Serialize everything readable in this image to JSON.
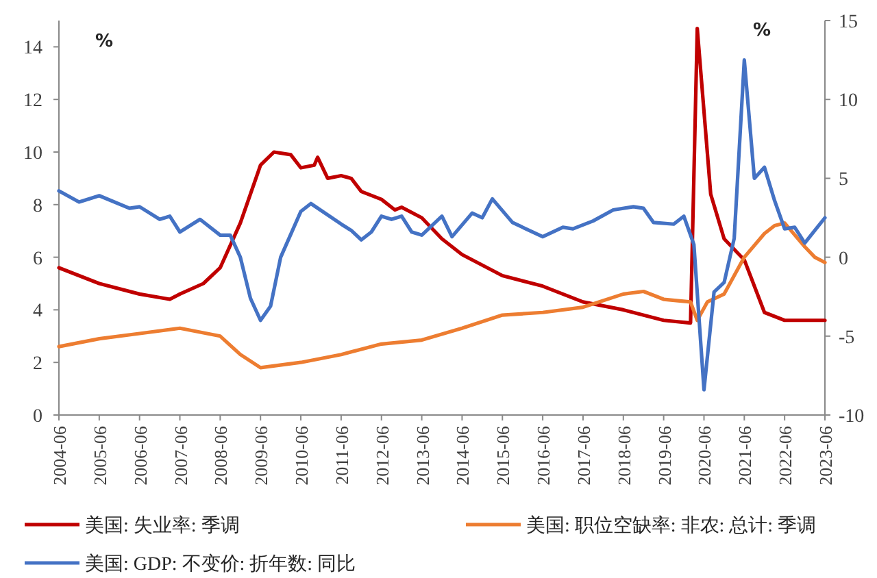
{
  "chart_data": {
    "type": "line",
    "xlim": [
      "2004-06",
      "2023-06"
    ],
    "xticks": [
      "2004-06",
      "2005-06",
      "2006-06",
      "2007-06",
      "2008-06",
      "2009-06",
      "2010-06",
      "2011-06",
      "2012-06",
      "2013-06",
      "2014-06",
      "2015-06",
      "2016-06",
      "2017-06",
      "2018-06",
      "2019-06",
      "2020-06",
      "2021-06",
      "2022-06",
      "2023-06"
    ],
    "ylim": [
      0,
      15
    ],
    "yticks": [
      0,
      2,
      4,
      6,
      8,
      10,
      12,
      14
    ],
    "y2lim": [
      -10,
      15
    ],
    "y2ticks": [
      -10,
      -5,
      0,
      5,
      10,
      15
    ],
    "annotations": [
      "%",
      "%"
    ],
    "legend": "bottom",
    "grid": false,
    "marker": "none",
    "line_style": "solid",
    "series": [
      {
        "name": "美国: 失业率: 季调",
        "color": "#c00000",
        "x": [
          "2004-06",
          "2005-06",
          "2006-06",
          "2007-03",
          "2007-06",
          "2008-01",
          "2008-06",
          "2008-12",
          "2009-06",
          "2009-10",
          "2010-03",
          "2010-06",
          "2010-10",
          "2010-11",
          "2011-02",
          "2011-06",
          "2011-09",
          "2011-12",
          "2012-06",
          "2012-10",
          "2012-12",
          "2013-06",
          "2013-12",
          "2014-06",
          "2015-06",
          "2016-06",
          "2017-06",
          "2018-06",
          "2019-06",
          "2020-02",
          "2020-04",
          "2020-08",
          "2020-12",
          "2021-06",
          "2021-12",
          "2022-06",
          "2023-06"
        ],
        "values": [
          5.6,
          5.0,
          4.6,
          4.4,
          4.6,
          5.0,
          5.6,
          7.3,
          9.5,
          10.0,
          9.9,
          9.4,
          9.5,
          9.8,
          9.0,
          9.1,
          9.0,
          8.5,
          8.2,
          7.8,
          7.9,
          7.5,
          6.7,
          6.1,
          5.3,
          4.9,
          4.3,
          4.0,
          3.6,
          3.5,
          14.7,
          8.4,
          6.7,
          5.9,
          3.9,
          3.6,
          3.6
        ]
      },
      {
        "name": "美国: 职位空缺率: 非农: 总计: 季调",
        "color": "#ed7d31",
        "x": [
          "2004-06",
          "2005-06",
          "2006-06",
          "2007-06",
          "2008-06",
          "2008-12",
          "2009-06",
          "2010-06",
          "2011-06",
          "2012-06",
          "2013-06",
          "2014-06",
          "2015-06",
          "2016-06",
          "2017-06",
          "2018-06",
          "2018-12",
          "2019-06",
          "2020-02",
          "2020-04",
          "2020-07",
          "2020-12",
          "2021-06",
          "2021-12",
          "2022-03",
          "2022-06",
          "2022-12",
          "2023-03",
          "2023-06"
        ],
        "values": [
          2.6,
          2.9,
          3.1,
          3.3,
          3.0,
          2.3,
          1.8,
          2.0,
          2.3,
          2.7,
          2.85,
          3.3,
          3.8,
          3.9,
          4.1,
          4.6,
          4.7,
          4.4,
          4.3,
          3.6,
          4.3,
          4.6,
          6.0,
          6.9,
          7.2,
          7.3,
          6.4,
          6.0,
          5.8
        ]
      },
      {
        "name": "美国: GDP: 不变价: 折年数: 同比",
        "color": "#4472c4",
        "axis": "y2",
        "x": [
          "2004-06",
          "2004-12",
          "2005-06",
          "2006-03",
          "2006-06",
          "2006-12",
          "2007-03",
          "2007-06",
          "2007-12",
          "2008-06",
          "2008-09",
          "2008-12",
          "2009-03",
          "2009-06",
          "2009-09",
          "2009-12",
          "2010-06",
          "2010-09",
          "2011-06",
          "2011-09",
          "2011-12",
          "2012-03",
          "2012-06",
          "2012-09",
          "2012-12",
          "2013-03",
          "2013-06",
          "2013-12",
          "2014-03",
          "2014-09",
          "2014-12",
          "2015-03",
          "2015-09",
          "2016-06",
          "2016-12",
          "2017-03",
          "2017-09",
          "2018-03",
          "2018-09",
          "2018-12",
          "2019-03",
          "2019-09",
          "2019-12",
          "2020-03",
          "2020-06",
          "2020-09",
          "2020-12",
          "2021-03",
          "2021-06",
          "2021-09",
          "2021-12",
          "2022-03",
          "2022-06",
          "2022-09",
          "2022-12",
          "2023-03",
          "2023-06"
        ],
        "values": [
          4.2,
          3.5,
          3.9,
          3.1,
          3.2,
          2.4,
          2.6,
          1.6,
          2.4,
          1.4,
          1.4,
          0.0,
          -2.6,
          -4.0,
          -3.1,
          0.0,
          2.9,
          3.4,
          2.1,
          1.7,
          1.1,
          1.6,
          2.6,
          2.4,
          2.6,
          1.6,
          1.4,
          2.6,
          1.3,
          2.8,
          2.5,
          3.7,
          2.2,
          1.3,
          1.9,
          1.8,
          2.3,
          3.0,
          3.2,
          3.1,
          2.2,
          2.1,
          2.6,
          0.8,
          -8.4,
          -2.2,
          -1.6,
          1.2,
          12.5,
          5.0,
          5.7,
          3.6,
          1.8,
          1.9,
          0.9,
          1.7,
          2.5
        ]
      }
    ]
  }
}
